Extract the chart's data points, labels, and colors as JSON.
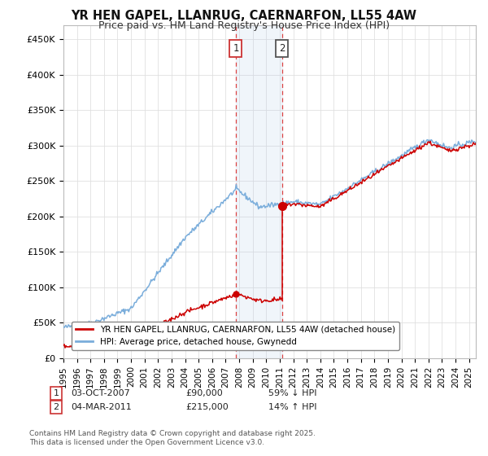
{
  "title": "YR HEN GAPEL, LLANRUG, CAERNARFON, LL55 4AW",
  "subtitle": "Price paid vs. HM Land Registry's House Price Index (HPI)",
  "ylabel_ticks": [
    "£0",
    "£50K",
    "£100K",
    "£150K",
    "£200K",
    "£250K",
    "£300K",
    "£350K",
    "£400K",
    "£450K"
  ],
  "ytick_values": [
    0,
    50000,
    100000,
    150000,
    200000,
    250000,
    300000,
    350000,
    400000,
    450000
  ],
  "ylim": [
    0,
    470000
  ],
  "xlim_start": 1995.0,
  "xlim_end": 2025.5,
  "property_color": "#cc0000",
  "hpi_color": "#7aaddb",
  "transaction1_date": 2007.75,
  "transaction1_price": 90000,
  "transaction2_date": 2011.17,
  "transaction2_price": 215000,
  "legend_property": "YR HEN GAPEL, LLANRUG, CAERNARFON, LL55 4AW (detached house)",
  "legend_hpi": "HPI: Average price, detached house, Gwynedd",
  "annotation1_label": "03-OCT-2007",
  "annotation1_price": "£90,000",
  "annotation1_hpi": "59% ↓ HPI",
  "annotation2_label": "04-MAR-2011",
  "annotation2_price": "£215,000",
  "annotation2_hpi": "14% ↑ HPI",
  "footnote": "Contains HM Land Registry data © Crown copyright and database right 2025.\nThis data is licensed under the Open Government Licence v3.0.",
  "background_color": "#ffffff",
  "grid_color": "#e0e0e0",
  "title_fontsize": 10.5,
  "subtitle_fontsize": 9
}
